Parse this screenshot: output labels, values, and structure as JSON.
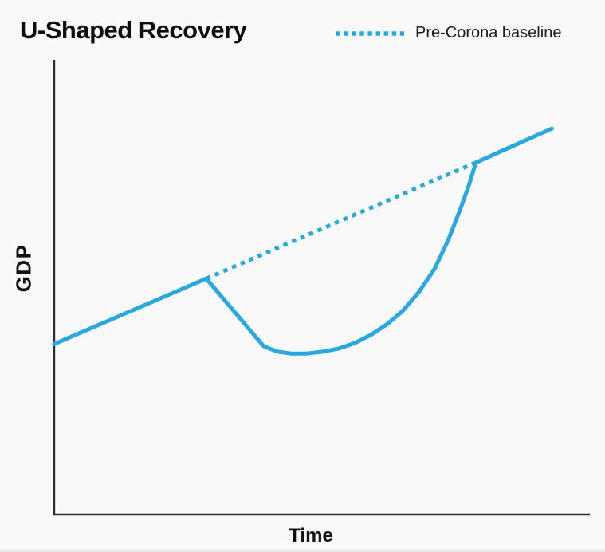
{
  "page": {
    "background": "#f9f9f9"
  },
  "header": {
    "title": "U-Shaped Recovery"
  },
  "legend": {
    "items": [
      {
        "label": "Pre-Corona baseline",
        "line_style": "dotted",
        "color": "#29a8df"
      }
    ]
  },
  "axes": {
    "x_label": "Time",
    "y_label": "GDP",
    "color": "#2b2b2b"
  },
  "colors": {
    "series": "#29a8df",
    "text": "#111111"
  },
  "chart_data": {
    "type": "line",
    "title": "U-Shaped Recovery",
    "xlabel": "Time",
    "ylabel": "GDP",
    "x_range": [
      0,
      100
    ],
    "y_range": [
      0,
      100
    ],
    "grid": false,
    "axis_tick_labels": "none (conceptual sketch chart)",
    "legend_position": "top-right",
    "description": "GDP rises, drops sharply at crisis onset, bottoms out in a U shape, then recovers steeply to rejoin the pre-crisis trend line and continues growing.",
    "series": [
      {
        "name": "GDP",
        "style": "solid",
        "points": [
          [
            0.0,
            37.5
          ],
          [
            28.4,
            51.9
          ],
          [
            39.1,
            37.0
          ],
          [
            41.7,
            35.8
          ],
          [
            44.2,
            35.4
          ],
          [
            47.2,
            35.4
          ],
          [
            50.1,
            35.8
          ],
          [
            53.1,
            36.5
          ],
          [
            56.1,
            37.7
          ],
          [
            59.1,
            39.5
          ],
          [
            62.1,
            41.8
          ],
          [
            65.0,
            44.7
          ],
          [
            68.0,
            48.8
          ],
          [
            71.0,
            54.0
          ],
          [
            73.5,
            60.2
          ],
          [
            75.7,
            66.8
          ],
          [
            77.4,
            72.3
          ],
          [
            78.7,
            77.4
          ],
          [
            92.9,
            84.9
          ]
        ]
      },
      {
        "name": "Pre-Corona baseline",
        "style": "dotted",
        "points": [
          [
            28.4,
            51.9
          ],
          [
            78.7,
            77.4
          ]
        ]
      }
    ]
  }
}
